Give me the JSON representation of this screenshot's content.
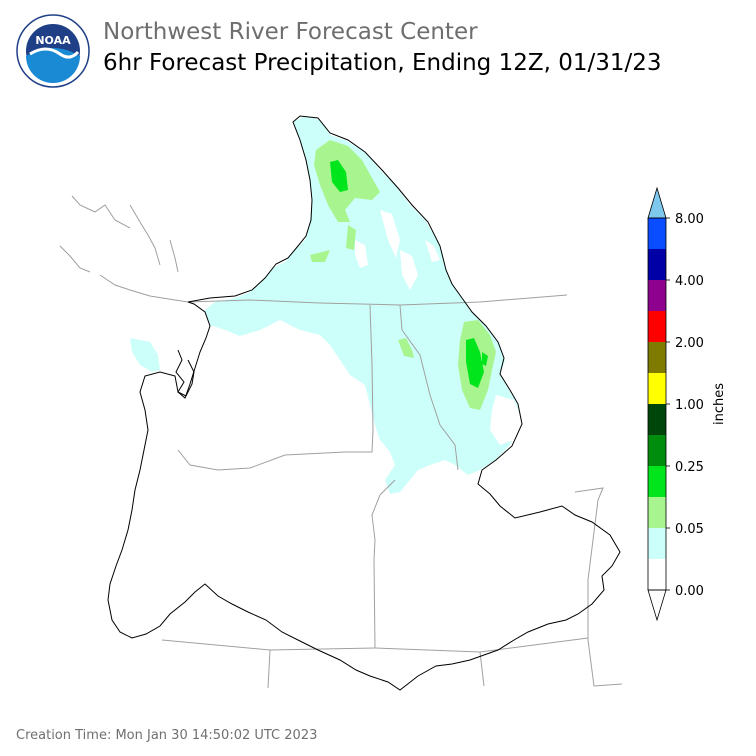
{
  "header": {
    "org": "Northwest River Forecast Center",
    "product": "6hr Forecast Precipitation, Ending 12Z, 01/31/23"
  },
  "logo": {
    "text": "NOAA",
    "ring_text": "NATIONAL OCEANIC AND ATMOSPHERIC ADMINISTRATION · U.S. DEPARTMENT OF COMMERCE"
  },
  "legend": {
    "unit_label": "inches",
    "tick_labels": [
      "0.00",
      "0.05",
      "0.25",
      "1.00",
      "2.00",
      "4.00",
      "8.00"
    ],
    "bins": [
      {
        "color": "#ffffff"
      },
      {
        "color": "#ccfffa"
      },
      {
        "color": "#a8f58f"
      },
      {
        "color": "#00e51c"
      },
      {
        "color": "#008c0d"
      },
      {
        "color": "#00460a"
      },
      {
        "color": "#ffff00"
      },
      {
        "color": "#7e7b00"
      },
      {
        "color": "#ff0000"
      },
      {
        "color": "#8e008e"
      },
      {
        "color": "#0000a6"
      },
      {
        "color": "#0a4cff"
      }
    ],
    "over_color": "#7ec8ee",
    "under_color": "#ffffff"
  },
  "footer": {
    "creation_time": "Creation Time: Mon Jan 30 14:50:02 UTC 2023"
  }
}
